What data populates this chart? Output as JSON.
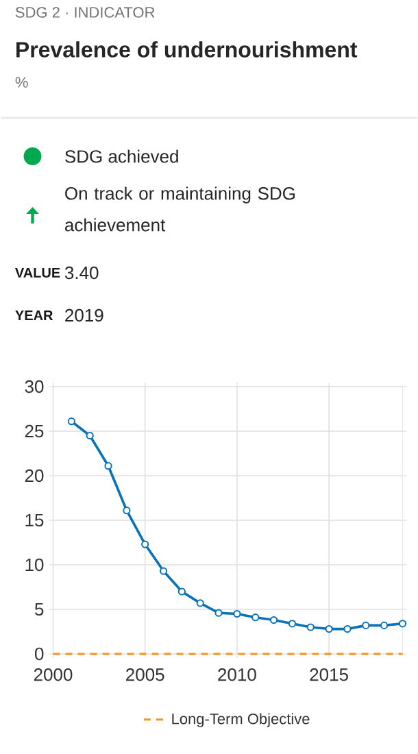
{
  "chart_data": {
    "type": "line",
    "title": "Prevalence of undernourishment",
    "subtitle": "%",
    "annotations": [
      "SDG 2 · INDICATOR",
      "SDG achieved",
      "On track or maintaining SDG achievement",
      "VALUE",
      "3.40",
      "YEAR",
      "2019"
    ],
    "x": [
      2001,
      2002,
      2003,
      2004,
      2005,
      2006,
      2007,
      2008,
      2009,
      2010,
      2011,
      2012,
      2013,
      2014,
      2015,
      2016,
      2017,
      2018,
      2019
    ],
    "series": [
      {
        "color": "#0a72b8",
        "values": [
          26.1,
          24.5,
          21.1,
          16.1,
          12.3,
          9.3,
          7.0,
          5.7,
          4.6,
          4.5,
          4.1,
          3.8,
          3.4,
          3.0,
          2.8,
          2.8,
          3.2,
          3.2,
          3.4
        ]
      }
    ],
    "xlim": [
      2000,
      2019
    ],
    "ylim": [
      0,
      30
    ],
    "xticks": [
      2000,
      2005,
      2010,
      2015
    ],
    "yticks": [
      0,
      5,
      10,
      15,
      20,
      25,
      30
    ],
    "ref_lines": [
      {
        "axis": "y",
        "value": 0,
        "label": "Long-Term Objective",
        "color": "#f7941d",
        "line_style": "dashed"
      }
    ],
    "grid": true,
    "legend": "bottom",
    "marker": "circle",
    "line_style": "solid"
  }
}
